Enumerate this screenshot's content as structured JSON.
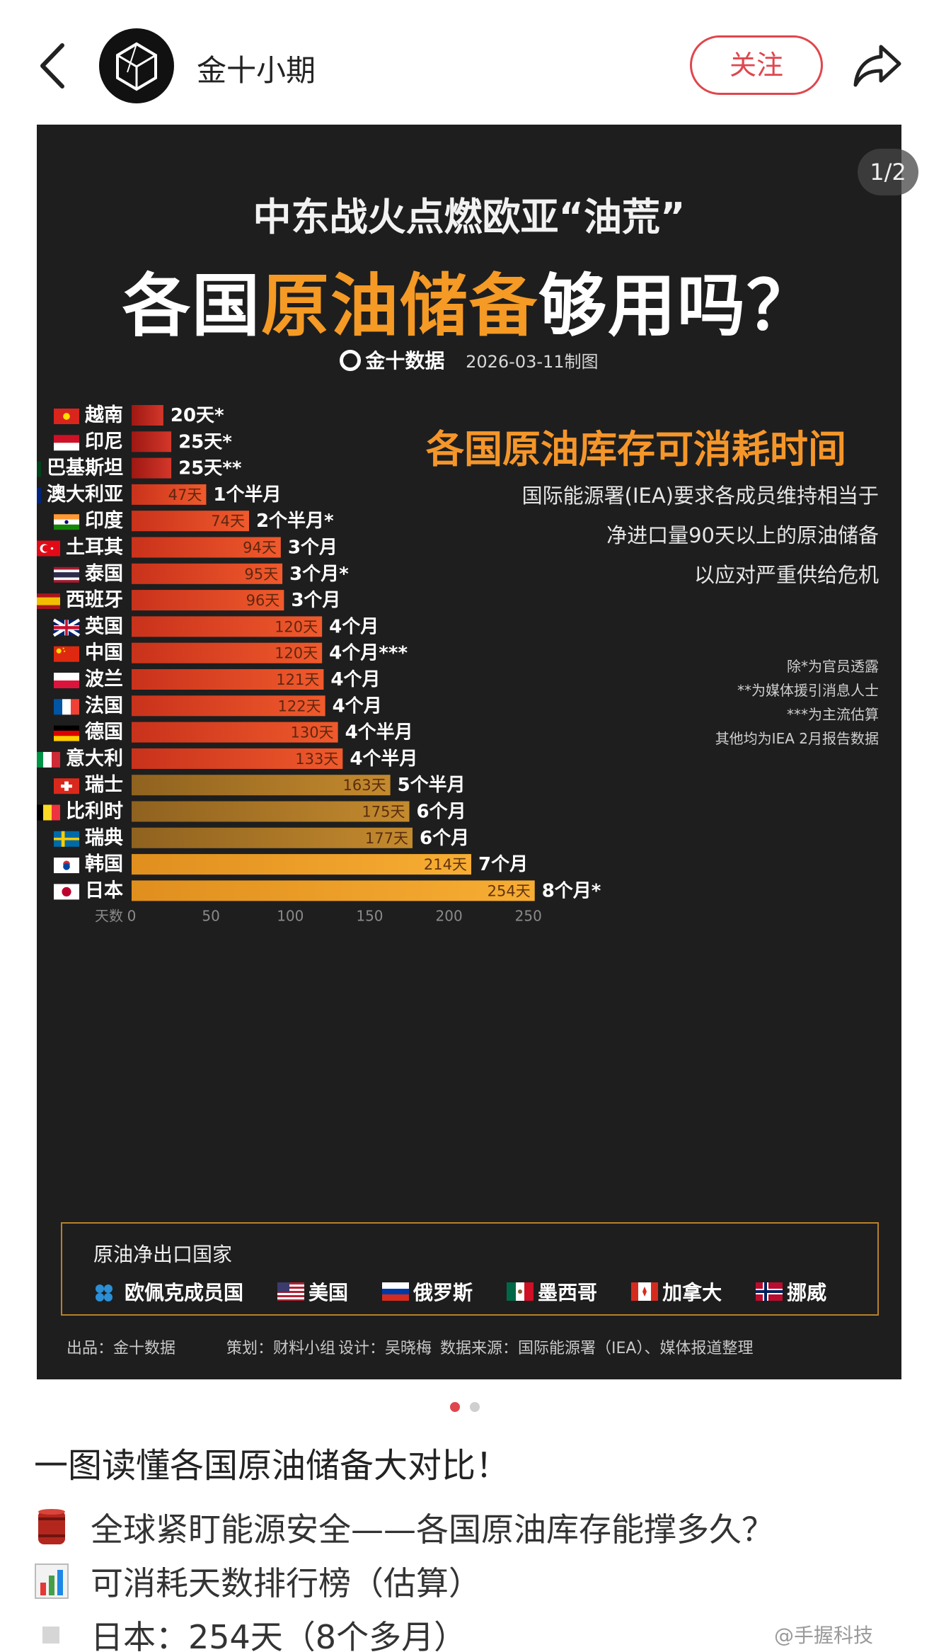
{
  "header": {
    "author": "金十小期",
    "follow_label": "关注",
    "pager": "1/2"
  },
  "poster": {
    "title_line1": "中东战火点燃欧亚“油荒”",
    "title_line2_a": "各国",
    "title_line2_b": "原油储备",
    "title_line2_c": "够用吗？",
    "brand": "金十数据",
    "date": "2026-03-11制图",
    "chart_heading": "各国原油库存可消耗时间",
    "iea_note": [
      "国际能源署(IEA)要求各成员维持相当于",
      "净进口量90天以上的原油储备",
      "以应对严重供给危机"
    ],
    "footnotes": [
      "除*为官员透露",
      "**为媒体援引消息人士",
      "***为主流估算",
      "其他均为IEA 2月报告数据"
    ],
    "exporters_title": "原油净出口国家",
    "exporters": [
      {
        "name": "欧佩克成员国",
        "flag": "opec"
      },
      {
        "name": "美国",
        "flag": "us"
      },
      {
        "name": "俄罗斯",
        "flag": "ru"
      },
      {
        "name": "墨西哥",
        "flag": "mx"
      },
      {
        "name": "加拿大",
        "flag": "ca"
      },
      {
        "name": "挪威",
        "flag": "no"
      }
    ],
    "credits": {
      "producer": "出品：金十数据",
      "planner": "策划：财料小组",
      "designer": "设计：吴晓梅",
      "source": "数据来源：国际能源署（IEA）、媒体报道整理"
    }
  },
  "chart_data": {
    "type": "bar",
    "orientation": "horizontal",
    "xlabel": "天数",
    "xlim": [
      0,
      250
    ],
    "xticks": [
      0,
      50,
      100,
      150,
      200,
      250
    ],
    "categories": [
      "越南",
      "印尼",
      "巴基斯坦",
      "澳大利亚",
      "印度",
      "土耳其",
      "泰国",
      "西班牙",
      "英国",
      "中国",
      "波兰",
      "法国",
      "德国",
      "意大利",
      "瑞士",
      "比利时",
      "瑞典",
      "韩国",
      "日本"
    ],
    "values": [
      20,
      25,
      25,
      47,
      74,
      94,
      95,
      96,
      120,
      120,
      121,
      122,
      130,
      133,
      163,
      175,
      177,
      214,
      254
    ],
    "bar_labels": [
      "",
      "",
      "",
      "47天",
      "74天",
      "94天",
      "95天",
      "96天",
      "120天",
      "120天",
      "121天",
      "122天",
      "130天",
      "133天",
      "163天",
      "175天",
      "177天",
      "214天",
      "254天"
    ],
    "duration_labels": [
      "20天*",
      "25天*",
      "25天**",
      "1个半月",
      "2个半月*",
      "3个月",
      "3个月*",
      "3个月",
      "4个月",
      "4个月***",
      "4个月",
      "4个月",
      "4个半月",
      "4个半月",
      "5个半月",
      "6个月",
      "6个月",
      "7个月",
      "8个月*"
    ],
    "flags": [
      "vn",
      "id",
      "pk",
      "au",
      "in",
      "tr",
      "th",
      "es",
      "gb",
      "cn",
      "pl",
      "fr",
      "de",
      "it",
      "ch",
      "be",
      "se",
      "kr",
      "jp"
    ],
    "colors": {
      "red": "#c8281e",
      "orange_red": "#e04a22",
      "dark_gold": "#b8812a",
      "gold": "#f5a52a"
    }
  },
  "body": {
    "dots": [
      "active",
      "inactive"
    ],
    "post_title": "一图读懂各国原油储备大对比！",
    "lines": [
      {
        "icon": "oil-barrel-icon",
        "text": "全球紧盯能源安全——各国原油库存能撑多久？"
      },
      {
        "icon": "bar-chart-icon",
        "text": "可消耗天数排行榜（估算）"
      },
      {
        "icon": "square-bullet-icon",
        "text": "日本：254天（8个多月）"
      }
    ],
    "watermark": "@手握科技"
  }
}
